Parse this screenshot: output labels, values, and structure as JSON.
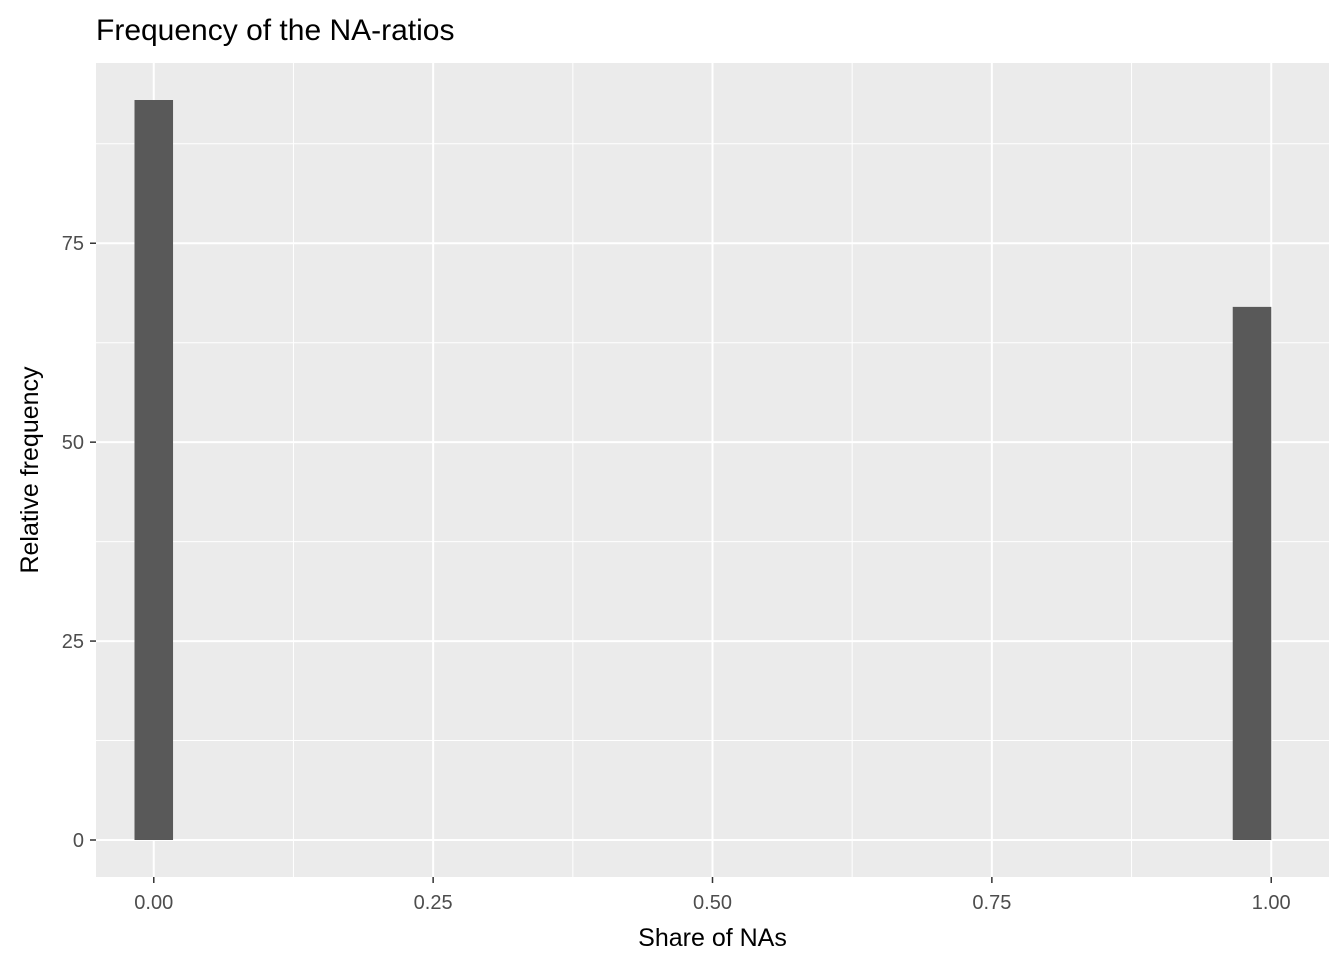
{
  "chart_data": {
    "type": "bar",
    "title": "Frequency of the NA-ratios",
    "xlabel": "Share of NAs",
    "ylabel": "Relative frequency",
    "bins": [
      {
        "x": 0.0,
        "width": 0.0345,
        "count": 93
      },
      {
        "x": 0.9828,
        "width": 0.0345,
        "count": 67
      }
    ],
    "xlim": [
      -0.0517,
      1.0517
    ],
    "ylim": [
      -4.65,
      97.65
    ],
    "x_ticks": [
      0,
      0.25,
      0.5,
      0.75,
      1
    ],
    "x_tick_labels": [
      "0.00",
      "0.25",
      "0.50",
      "0.75",
      "1.00"
    ],
    "y_ticks": [
      0,
      25,
      50,
      75
    ],
    "y_tick_labels": [
      "0",
      "25",
      "50",
      "75"
    ],
    "x_minor_ticks": [
      0.125,
      0.375,
      0.625,
      0.875
    ],
    "y_minor_ticks": [
      12.5,
      37.5,
      62.5,
      87.5
    ],
    "grid": true,
    "colors": {
      "panel_background": "#EBEBEB",
      "grid_line": "#FFFFFF",
      "bar_fill": "#595959",
      "tick_label": "#4D4D4D",
      "tick_mark": "#333333"
    }
  }
}
